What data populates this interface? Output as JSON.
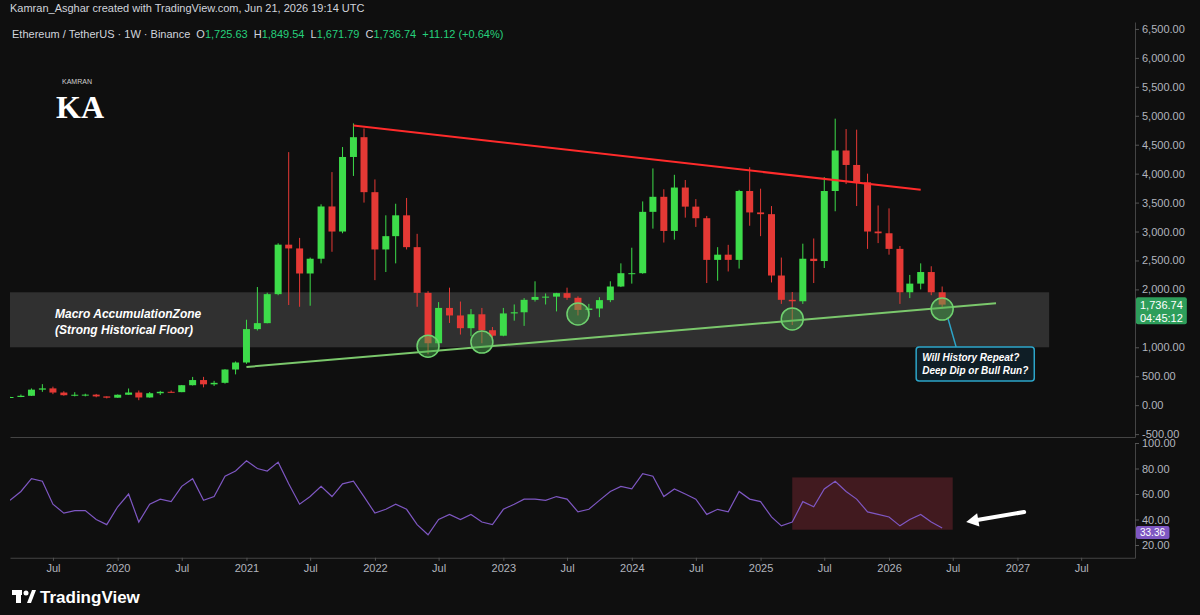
{
  "header": {
    "attribution": "Kamran_Asghar created with TradingView.com, Jun 21, 2026 19:14 UTC"
  },
  "logo": {
    "text": "KA",
    "caption": "KAMRAN"
  },
  "watermark": "TradingView",
  "chart_data": [
    {
      "type": "candlestick",
      "title": "Ethereum / TetherUS · 1W · Binance",
      "ohlc_text": [
        "O1,725.63",
        "H1,849.54",
        "L1,671.79",
        "C1,736.74",
        "+11.12 (+0.64%)"
      ],
      "x": [
        "2019-03",
        "2019-04",
        "2019-05",
        "2019-06",
        "2019-07",
        "2019-08",
        "2019-09",
        "2019-10",
        "2019-11",
        "2019-12",
        "2020-01",
        "2020-02",
        "2020-03",
        "2020-04",
        "2020-05",
        "2020-06",
        "2020-07",
        "2020-08",
        "2020-09",
        "2020-10",
        "2020-11",
        "2020-12",
        "2021-01",
        "2021-02",
        "2021-03",
        "2021-04",
        "2021-05",
        "2021-06",
        "2021-07",
        "2021-08",
        "2021-09",
        "2021-10",
        "2021-11",
        "2021-12",
        "2022-01",
        "2022-02",
        "2022-03",
        "2022-04",
        "2022-05",
        "2022-06",
        "2022-07",
        "2022-08",
        "2022-09",
        "2022-10",
        "2022-11",
        "2022-12",
        "2023-01",
        "2023-02",
        "2023-03",
        "2023-04",
        "2023-05",
        "2023-06",
        "2023-07",
        "2023-08",
        "2023-09",
        "2023-10",
        "2023-11",
        "2023-12",
        "2024-01",
        "2024-02",
        "2024-03",
        "2024-04",
        "2024-05",
        "2024-06",
        "2024-07",
        "2024-08",
        "2024-09",
        "2024-10",
        "2024-11",
        "2024-12",
        "2025-01",
        "2025-02",
        "2025-03",
        "2025-04",
        "2025-05",
        "2025-06",
        "2025-07",
        "2025-08",
        "2025-09",
        "2025-10",
        "2025-11",
        "2025-12",
        "2026-01",
        "2026-02",
        "2026-03",
        "2026-04",
        "2026-05",
        "2026-06"
      ],
      "open": [
        136,
        141,
        162,
        268,
        290,
        218,
        172,
        180,
        182,
        151,
        129,
        180,
        218,
        133,
        206,
        231,
        225,
        345,
        434,
        360,
        386,
        616,
        737,
        1314,
        1417,
        1918,
        2773,
        2708,
        2275,
        2530,
        3433,
        3000,
        4288,
        4630,
        3680,
        2690,
        2920,
        3280,
        2730,
        1940,
        1070,
        1680,
        1550,
        1330,
        1570,
        1295,
        1200,
        1585,
        1605,
        1820,
        1870,
        1875,
        1935,
        1855,
        1645,
        1670,
        1815,
        2050,
        2280,
        2280,
        3340,
        3600,
        3010,
        3760,
        3430,
        3230,
        2510,
        2600,
        2510,
        3700,
        3330,
        3300,
        2240,
        1820,
        1795,
        2530,
        2490,
        3700,
        4400,
        4150,
        3850,
        3000,
        2970,
        2700,
        1950,
        2100,
        2300,
        1950
      ],
      "high": [
        145,
        184,
        289,
        363,
        320,
        240,
        224,
        198,
        194,
        153,
        185,
        288,
        253,
        227,
        247,
        253,
        349,
        488,
        489,
        420,
        622,
        755,
        1476,
        2041,
        1943,
        2797,
        4372,
        2890,
        2550,
        3470,
        4027,
        4460,
        4868,
        4780,
        3900,
        3280,
        3480,
        3580,
        2960,
        1970,
        1780,
        2030,
        1790,
        1660,
        1680,
        1350,
        1680,
        1740,
        1850,
        2140,
        1930,
        1940,
        2030,
        1880,
        1750,
        1865,
        2140,
        2450,
        2720,
        3520,
        4090,
        3730,
        3980,
        3890,
        3560,
        3270,
        2730,
        2770,
        3720,
        4110,
        3740,
        3440,
        2550,
        1955,
        2790,
        2880,
        3940,
        4950,
        4770,
        4760,
        4000,
        3450,
        3400,
        2750,
        2250,
        2450,
        2400,
        2050
      ],
      "low": [
        126,
        138,
        158,
        230,
        190,
        163,
        152,
        152,
        136,
        116,
        127,
        178,
        86,
        130,
        176,
        216,
        224,
        340,
        308,
        332,
        372,
        532,
        715,
        1290,
        1414,
        1900,
        1730,
        1700,
        1718,
        2450,
        2650,
        2970,
        3960,
        3500,
        2160,
        2300,
        2450,
        2690,
        1700,
        880,
        1000,
        1420,
        1220,
        1190,
        1070,
        1150,
        1190,
        1460,
        1370,
        1790,
        1740,
        1620,
        1820,
        1550,
        1530,
        1520,
        1780,
        2040,
        2100,
        2270,
        3050,
        2810,
        2860,
        3240,
        3080,
        2110,
        2150,
        2310,
        2360,
        3100,
        2920,
        2120,
        1750,
        1385,
        1750,
        2110,
        2370,
        3350,
        3820,
        3440,
        2700,
        2800,
        2600,
        1750,
        1850,
        2000,
        1900,
        1672
      ],
      "close": [
        141,
        162,
        268,
        290,
        218,
        172,
        180,
        182,
        151,
        129,
        180,
        218,
        133,
        206,
        231,
        225,
        345,
        434,
        360,
        386,
        616,
        737,
        1314,
        1417,
        1918,
        2773,
        2708,
        2275,
        2530,
        3433,
        3000,
        4288,
        4630,
        3680,
        2690,
        2920,
        3280,
        2730,
        1940,
        1070,
        1680,
        1550,
        1330,
        1570,
        1295,
        1200,
        1585,
        1605,
        1820,
        1870,
        1875,
        1935,
        1855,
        1645,
        1670,
        1815,
        2050,
        2280,
        2280,
        3340,
        3600,
        3010,
        3760,
        3430,
        3230,
        2510,
        2600,
        2510,
        3700,
        3330,
        3300,
        2240,
        1820,
        1795,
        2530,
        2490,
        3700,
        4400,
        4150,
        3850,
        3000,
        2970,
        2700,
        1950,
        2100,
        2300,
        1950,
        1737
      ],
      "xlim": [
        "2019-03",
        "2027-12"
      ],
      "ylim": [
        -550,
        6620
      ],
      "yticks": [
        {
          "value": -500,
          "label": "-500.00"
        },
        {
          "value": 0,
          "label": "0.00"
        },
        {
          "value": 500,
          "label": "500.00"
        },
        {
          "value": 1000,
          "label": "1,000.00"
        },
        {
          "value": 2000,
          "label": "2,000.00"
        },
        {
          "value": 2500,
          "label": "2,500.00"
        },
        {
          "value": 3000,
          "label": "3,000.00"
        },
        {
          "value": 3500,
          "label": "3,500.00"
        },
        {
          "value": 4000,
          "label": "4,000.00"
        },
        {
          "value": 4500,
          "label": "4,500.00"
        },
        {
          "value": 5000,
          "label": "5,000.00"
        },
        {
          "value": 5500,
          "label": "5,500.00"
        },
        {
          "value": 6000,
          "label": "6,000.00"
        },
        {
          "value": 6500,
          "label": "6,500.00"
        }
      ],
      "tick_labels": "y",
      "grid": false,
      "zone": {
        "label": [
          "Macro AccumulationZone",
          "(Strong Historical Floor)"
        ],
        "x": [
          "2019-03",
          "2027-04"
        ],
        "y": [
          1000,
          1950
        ]
      },
      "trendlines": [
        {
          "color": "#ff2b2b",
          "x": [
            "2021-11",
            "2026-04"
          ],
          "y": [
            4830,
            3720
          ]
        },
        {
          "color": "#7bc86c",
          "x": [
            "2021-01",
            "2026-11"
          ],
          "y": [
            660,
            1760
          ]
        }
      ],
      "highlights": {
        "x": [
          "2022-06",
          "2022-11",
          "2023-08",
          "2025-04",
          "2026-06"
        ],
        "y": [
          1020,
          1090,
          1575,
          1490,
          1660
        ]
      },
      "callout": [
        "Will History Repeat?",
        "Deep Dip or Bull Run?"
      ],
      "last_price": {
        "value": 1736.74,
        "label": "1,736.74",
        "countdown": "04:45:12"
      }
    },
    {
      "type": "line",
      "x": [
        "2019-03",
        "2019-04",
        "2019-05",
        "2019-06",
        "2019-07",
        "2019-08",
        "2019-09",
        "2019-10",
        "2019-11",
        "2019-12",
        "2020-01",
        "2020-02",
        "2020-03",
        "2020-04",
        "2020-05",
        "2020-06",
        "2020-07",
        "2020-08",
        "2020-09",
        "2020-10",
        "2020-11",
        "2020-12",
        "2021-01",
        "2021-02",
        "2021-03",
        "2021-04",
        "2021-05",
        "2021-06",
        "2021-07",
        "2021-08",
        "2021-09",
        "2021-10",
        "2021-11",
        "2021-12",
        "2022-01",
        "2022-02",
        "2022-03",
        "2022-04",
        "2022-05",
        "2022-06",
        "2022-07",
        "2022-08",
        "2022-09",
        "2022-10",
        "2022-11",
        "2022-12",
        "2023-01",
        "2023-02",
        "2023-03",
        "2023-04",
        "2023-05",
        "2023-06",
        "2023-07",
        "2023-08",
        "2023-09",
        "2023-10",
        "2023-11",
        "2023-12",
        "2024-01",
        "2024-02",
        "2024-03",
        "2024-04",
        "2024-05",
        "2024-06",
        "2024-07",
        "2024-08",
        "2024-09",
        "2024-10",
        "2024-11",
        "2024-12",
        "2025-01",
        "2025-02",
        "2025-03",
        "2025-04",
        "2025-05",
        "2025-06",
        "2025-07",
        "2025-08",
        "2025-09",
        "2025-10",
        "2025-11",
        "2025-12",
        "2026-01",
        "2026-02",
        "2026-03",
        "2026-04",
        "2026-05",
        "2026-06"
      ],
      "values": [
        55,
        62,
        72,
        70,
        52,
        45,
        47,
        47,
        40,
        36,
        50,
        60,
        38,
        52,
        56,
        54,
        66,
        72,
        55,
        58,
        74,
        78,
        86,
        80,
        78,
        85,
        68,
        52,
        58,
        66,
        58,
        68,
        70,
        58,
        45,
        48,
        52,
        48,
        36,
        28,
        40,
        44,
        40,
        44,
        38,
        36,
        48,
        52,
        56,
        56,
        55,
        58,
        56,
        46,
        48,
        55,
        62,
        66,
        64,
        76,
        74,
        58,
        64,
        60,
        56,
        44,
        48,
        46,
        62,
        56,
        54,
        42,
        35,
        38,
        54,
        50,
        64,
        70,
        62,
        56,
        46,
        44,
        42,
        35,
        40,
        44,
        38,
        33.36
      ],
      "color": "#7e57c2",
      "xlim": [
        "2019-03",
        "2027-12"
      ],
      "xticks": [
        {
          "value": "2019-07",
          "label": "Jul"
        },
        {
          "value": "2020-01",
          "label": "2020"
        },
        {
          "value": "2020-07",
          "label": "Jul"
        },
        {
          "value": "2021-01",
          "label": "2021"
        },
        {
          "value": "2021-07",
          "label": "Jul"
        },
        {
          "value": "2022-01",
          "label": "2022"
        },
        {
          "value": "2022-07",
          "label": "Jul"
        },
        {
          "value": "2023-01",
          "label": "2023"
        },
        {
          "value": "2023-07",
          "label": "Jul"
        },
        {
          "value": "2024-01",
          "label": "2024"
        },
        {
          "value": "2024-07",
          "label": "Jul"
        },
        {
          "value": "2025-01",
          "label": "2025"
        },
        {
          "value": "2025-07",
          "label": "Jul"
        },
        {
          "value": "2026-01",
          "label": "2026"
        },
        {
          "value": "2026-07",
          "label": "Jul"
        },
        {
          "value": "2027-01",
          "label": "2027"
        },
        {
          "value": "2027-07",
          "label": "Jul"
        }
      ],
      "ylim": [
        10,
        100
      ],
      "yticks": [
        {
          "value": 20,
          "label": "20.00"
        },
        {
          "value": 40,
          "label": "40.00"
        },
        {
          "value": 60,
          "label": "60.00"
        },
        {
          "value": 80,
          "label": "80.00"
        },
        {
          "value": 100,
          "label": "100.00"
        }
      ],
      "grid": false,
      "highlight": {
        "x": [
          "2025-04",
          "2026-07"
        ],
        "y": [
          32,
          73
        ]
      },
      "last_value": 33.36
    }
  ]
}
